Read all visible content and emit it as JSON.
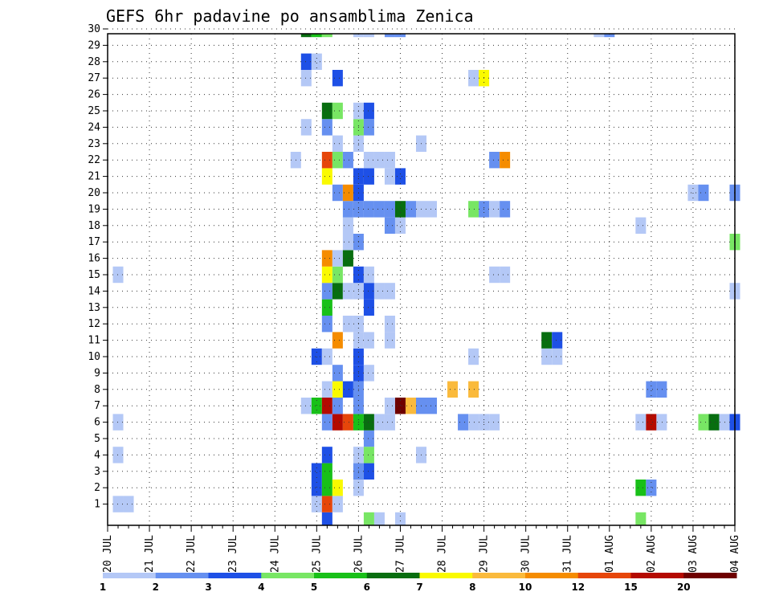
{
  "chart_data": {
    "type": "heatmap",
    "title": "GEFS 6hr padavine po ansamblima Zenica",
    "x_tick_labels": [
      "20 JUL",
      "21 JUL",
      "22 JUL",
      "23 JUL",
      "24 JUL",
      "25 JUL",
      "26 JUL",
      "27 JUL",
      "28 JUL",
      "29 JUL",
      "30 JUL",
      "31 JUL",
      "01 AUG",
      "02 AUG",
      "03 AUG",
      "04 AUG"
    ],
    "y_tick_labels": [
      "1",
      "2",
      "3",
      "4",
      "5",
      "6",
      "7",
      "8",
      "9",
      "10",
      "11",
      "12",
      "13",
      "14",
      "15",
      "16",
      "17",
      "18",
      "19",
      "20",
      "21",
      "22",
      "23",
      "24",
      "25",
      "26",
      "27",
      "28",
      "29",
      "30"
    ],
    "x_unit": "6hr steps from 20 JUL 00Z",
    "y_unit": "ensemble member",
    "colorbar": {
      "labels": [
        "1",
        "2",
        "3",
        "4",
        "5",
        "6",
        "7",
        "8",
        "10",
        "12",
        "15",
        "20"
      ],
      "colors": [
        "#b4c8f6",
        "#6690f0",
        "#1e50e6",
        "#78e664",
        "#18c018",
        "#086e10",
        "#fafa00",
        "#faba3c",
        "#f58c00",
        "#e6460a",
        "#b40a00",
        "#6e0000"
      ]
    },
    "grid": true,
    "cells": [
      {
        "x": 1,
        "y": 1,
        "v": 1
      },
      {
        "x": 1,
        "y": 4,
        "v": 1
      },
      {
        "x": 1,
        "y": 6,
        "v": 1
      },
      {
        "x": 1,
        "y": 15,
        "v": 1
      },
      {
        "x": 2,
        "y": 1,
        "v": 1
      },
      {
        "x": 18,
        "y": 22,
        "v": 1
      },
      {
        "x": 19,
        "y": 7,
        "v": 1
      },
      {
        "x": 19,
        "y": 24,
        "v": 1
      },
      {
        "x": 19,
        "y": 27,
        "v": 1
      },
      {
        "x": 19,
        "y": 28,
        "v": 3
      },
      {
        "x": 19,
        "y": 30,
        "v": 6
      },
      {
        "x": 20,
        "y": 1,
        "v": 1
      },
      {
        "x": 20,
        "y": 2,
        "v": 3
      },
      {
        "x": 20,
        "y": 3,
        "v": 3
      },
      {
        "x": 20,
        "y": 7,
        "v": 5
      },
      {
        "x": 20,
        "y": 10,
        "v": 3
      },
      {
        "x": 20,
        "y": 28,
        "v": 1
      },
      {
        "x": 20,
        "y": 30,
        "v": 5
      },
      {
        "x": 21,
        "y": 0,
        "v": 3
      },
      {
        "x": 21,
        "y": 1,
        "v": 10
      },
      {
        "x": 21,
        "y": 2,
        "v": 5
      },
      {
        "x": 21,
        "y": 3,
        "v": 5
      },
      {
        "x": 21,
        "y": 4,
        "v": 3
      },
      {
        "x": 21,
        "y": 6,
        "v": 2
      },
      {
        "x": 21,
        "y": 7,
        "v": 11
      },
      {
        "x": 21,
        "y": 8,
        "v": 1
      },
      {
        "x": 21,
        "y": 10,
        "v": 1
      },
      {
        "x": 21,
        "y": 12,
        "v": 2
      },
      {
        "x": 21,
        "y": 13,
        "v": 5
      },
      {
        "x": 21,
        "y": 14,
        "v": 2
      },
      {
        "x": 21,
        "y": 15,
        "v": 7
      },
      {
        "x": 21,
        "y": 16,
        "v": 9
      },
      {
        "x": 21,
        "y": 21,
        "v": 7
      },
      {
        "x": 21,
        "y": 22,
        "v": 10
      },
      {
        "x": 21,
        "y": 24,
        "v": 2
      },
      {
        "x": 21,
        "y": 25,
        "v": 6
      },
      {
        "x": 21,
        "y": 30,
        "v": 4
      },
      {
        "x": 22,
        "y": 1,
        "v": 1
      },
      {
        "x": 22,
        "y": 2,
        "v": 7
      },
      {
        "x": 22,
        "y": 6,
        "v": 11
      },
      {
        "x": 22,
        "y": 7,
        "v": 2
      },
      {
        "x": 22,
        "y": 8,
        "v": 7
      },
      {
        "x": 22,
        "y": 9,
        "v": 2
      },
      {
        "x": 22,
        "y": 11,
        "v": 9
      },
      {
        "x": 22,
        "y": 14,
        "v": 6
      },
      {
        "x": 22,
        "y": 15,
        "v": 4
      },
      {
        "x": 22,
        "y": 16,
        "v": 1
      },
      {
        "x": 22,
        "y": 20,
        "v": 2
      },
      {
        "x": 22,
        "y": 22,
        "v": 4
      },
      {
        "x": 22,
        "y": 23,
        "v": 1
      },
      {
        "x": 22,
        "y": 25,
        "v": 4
      },
      {
        "x": 22,
        "y": 27,
        "v": 3
      },
      {
        "x": 23,
        "y": 6,
        "v": 10
      },
      {
        "x": 23,
        "y": 8,
        "v": 3
      },
      {
        "x": 23,
        "y": 12,
        "v": 1
      },
      {
        "x": 23,
        "y": 14,
        "v": 1
      },
      {
        "x": 23,
        "y": 16,
        "v": 6
      },
      {
        "x": 23,
        "y": 17,
        "v": 1
      },
      {
        "x": 23,
        "y": 18,
        "v": 1
      },
      {
        "x": 23,
        "y": 19,
        "v": 2
      },
      {
        "x": 23,
        "y": 20,
        "v": 9
      },
      {
        "x": 23,
        "y": 22,
        "v": 2
      },
      {
        "x": 24,
        "y": 2,
        "v": 1
      },
      {
        "x": 24,
        "y": 3,
        "v": 2
      },
      {
        "x": 24,
        "y": 4,
        "v": 1
      },
      {
        "x": 24,
        "y": 6,
        "v": 5
      },
      {
        "x": 24,
        "y": 7,
        "v": 2
      },
      {
        "x": 24,
        "y": 8,
        "v": 2
      },
      {
        "x": 24,
        "y": 9,
        "v": 3
      },
      {
        "x": 24,
        "y": 10,
        "v": 3
      },
      {
        "x": 24,
        "y": 11,
        "v": 1
      },
      {
        "x": 24,
        "y": 12,
        "v": 1
      },
      {
        "x": 24,
        "y": 14,
        "v": 1
      },
      {
        "x": 24,
        "y": 15,
        "v": 3
      },
      {
        "x": 24,
        "y": 17,
        "v": 2
      },
      {
        "x": 24,
        "y": 19,
        "v": 2
      },
      {
        "x": 24,
        "y": 20,
        "v": 3
      },
      {
        "x": 24,
        "y": 21,
        "v": 3
      },
      {
        "x": 24,
        "y": 23,
        "v": 1
      },
      {
        "x": 24,
        "y": 24,
        "v": 4
      },
      {
        "x": 24,
        "y": 25,
        "v": 1
      },
      {
        "x": 24,
        "y": 30,
        "v": 1
      },
      {
        "x": 25,
        "y": 0,
        "v": 4
      },
      {
        "x": 25,
        "y": 3,
        "v": 3
      },
      {
        "x": 25,
        "y": 4,
        "v": 4
      },
      {
        "x": 25,
        "y": 5,
        "v": 2
      },
      {
        "x": 25,
        "y": 6,
        "v": 6
      },
      {
        "x": 25,
        "y": 9,
        "v": 1
      },
      {
        "x": 25,
        "y": 11,
        "v": 1
      },
      {
        "x": 25,
        "y": 13,
        "v": 3
      },
      {
        "x": 25,
        "y": 14,
        "v": 3
      },
      {
        "x": 25,
        "y": 15,
        "v": 1
      },
      {
        "x": 25,
        "y": 19,
        "v": 2
      },
      {
        "x": 25,
        "y": 21,
        "v": 3
      },
      {
        "x": 25,
        "y": 22,
        "v": 1
      },
      {
        "x": 25,
        "y": 24,
        "v": 2
      },
      {
        "x": 25,
        "y": 25,
        "v": 3
      },
      {
        "x": 25,
        "y": 30,
        "v": 1
      },
      {
        "x": 26,
        "y": 0,
        "v": 1
      },
      {
        "x": 26,
        "y": 6,
        "v": 1
      },
      {
        "x": 26,
        "y": 14,
        "v": 1
      },
      {
        "x": 26,
        "y": 19,
        "v": 2
      },
      {
        "x": 26,
        "y": 22,
        "v": 1
      },
      {
        "x": 27,
        "y": 6,
        "v": 1
      },
      {
        "x": 27,
        "y": 7,
        "v": 1
      },
      {
        "x": 27,
        "y": 11,
        "v": 1
      },
      {
        "x": 27,
        "y": 12,
        "v": 1
      },
      {
        "x": 27,
        "y": 14,
        "v": 1
      },
      {
        "x": 27,
        "y": 18,
        "v": 2
      },
      {
        "x": 27,
        "y": 19,
        "v": 2
      },
      {
        "x": 27,
        "y": 21,
        "v": 1
      },
      {
        "x": 27,
        "y": 22,
        "v": 1
      },
      {
        "x": 27,
        "y": 30,
        "v": 2
      },
      {
        "x": 28,
        "y": 0,
        "v": 1
      },
      {
        "x": 28,
        "y": 7,
        "v": 12
      },
      {
        "x": 28,
        "y": 18,
        "v": 1
      },
      {
        "x": 28,
        "y": 19,
        "v": 6
      },
      {
        "x": 28,
        "y": 21,
        "v": 3
      },
      {
        "x": 28,
        "y": 30,
        "v": 2
      },
      {
        "x": 29,
        "y": 7,
        "v": 8
      },
      {
        "x": 29,
        "y": 19,
        "v": 2
      },
      {
        "x": 30,
        "y": 4,
        "v": 1
      },
      {
        "x": 30,
        "y": 7,
        "v": 2
      },
      {
        "x": 30,
        "y": 19,
        "v": 1
      },
      {
        "x": 30,
        "y": 23,
        "v": 1
      },
      {
        "x": 31,
        "y": 7,
        "v": 2
      },
      {
        "x": 31,
        "y": 19,
        "v": 1
      },
      {
        "x": 33,
        "y": 8,
        "v": 8
      },
      {
        "x": 34,
        "y": 6,
        "v": 2
      },
      {
        "x": 35,
        "y": 6,
        "v": 1
      },
      {
        "x": 35,
        "y": 8,
        "v": 8
      },
      {
        "x": 35,
        "y": 10,
        "v": 1
      },
      {
        "x": 35,
        "y": 19,
        "v": 4
      },
      {
        "x": 35,
        "y": 27,
        "v": 1
      },
      {
        "x": 36,
        "y": 6,
        "v": 1
      },
      {
        "x": 36,
        "y": 19,
        "v": 2
      },
      {
        "x": 36,
        "y": 27,
        "v": 7
      },
      {
        "x": 37,
        "y": 6,
        "v": 1
      },
      {
        "x": 37,
        "y": 15,
        "v": 1
      },
      {
        "x": 37,
        "y": 19,
        "v": 1
      },
      {
        "x": 37,
        "y": 22,
        "v": 2
      },
      {
        "x": 38,
        "y": 15,
        "v": 1
      },
      {
        "x": 38,
        "y": 19,
        "v": 2
      },
      {
        "x": 38,
        "y": 22,
        "v": 9
      },
      {
        "x": 42,
        "y": 10,
        "v": 1
      },
      {
        "x": 42,
        "y": 11,
        "v": 6
      },
      {
        "x": 43,
        "y": 10,
        "v": 1
      },
      {
        "x": 43,
        "y": 11,
        "v": 3
      },
      {
        "x": 47,
        "y": 30,
        "v": 1
      },
      {
        "x": 48,
        "y": 30,
        "v": 2
      },
      {
        "x": 51,
        "y": 0,
        "v": 4
      },
      {
        "x": 51,
        "y": 2,
        "v": 5
      },
      {
        "x": 51,
        "y": 6,
        "v": 1
      },
      {
        "x": 51,
        "y": 18,
        "v": 1
      },
      {
        "x": 52,
        "y": 2,
        "v": 2
      },
      {
        "x": 52,
        "y": 6,
        "v": 11
      },
      {
        "x": 52,
        "y": 8,
        "v": 2
      },
      {
        "x": 53,
        "y": 6,
        "v": 1
      },
      {
        "x": 53,
        "y": 8,
        "v": 2
      },
      {
        "x": 56,
        "y": 20,
        "v": 1
      },
      {
        "x": 57,
        "y": 6,
        "v": 4
      },
      {
        "x": 57,
        "y": 20,
        "v": 2
      },
      {
        "x": 58,
        "y": 6,
        "v": 6
      },
      {
        "x": 59,
        "y": 6,
        "v": 1
      },
      {
        "x": 60,
        "y": 6,
        "v": 3
      },
      {
        "x": 60,
        "y": 14,
        "v": 1
      },
      {
        "x": 60,
        "y": 17,
        "v": 4
      },
      {
        "x": 60,
        "y": 20,
        "v": 2
      }
    ]
  }
}
